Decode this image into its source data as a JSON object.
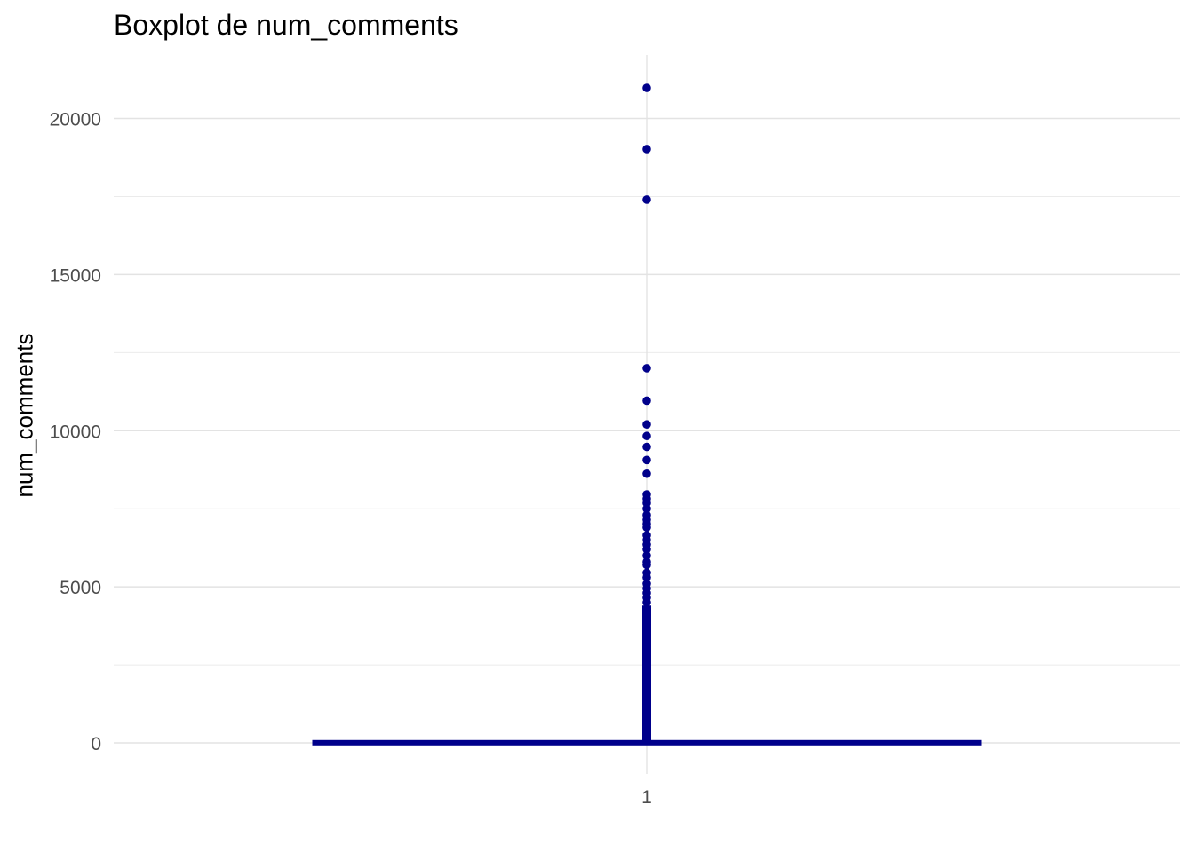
{
  "chart_data": {
    "type": "boxplot",
    "title": "Boxplot de num_comments",
    "xlabel": "",
    "ylabel": "num_comments",
    "categories": [
      "1"
    ],
    "y_ticks": [
      0,
      5000,
      10000,
      15000,
      20000
    ],
    "ylim": [
      -1000,
      22000
    ],
    "grid": true,
    "color": "#00008B",
    "box": {
      "q1": 0,
      "median": 0,
      "q3": 20,
      "whisker_low": 0,
      "whisker_high": 50
    },
    "outliers": [
      20980,
      19020,
      17400,
      12000,
      10960,
      10200,
      9830,
      9480,
      9060,
      8620,
      7960,
      7820,
      7680,
      7500,
      7300,
      7150,
      7020,
      6900,
      6650,
      6500,
      6350,
      6200,
      6000,
      5800,
      5700,
      5450,
      5300,
      5100,
      4950,
      4800,
      4650,
      4500,
      4300,
      4100,
      3900,
      3700,
      3500,
      3300,
      3100,
      2900,
      2700,
      2500,
      2300,
      2100,
      1900,
      1700,
      1500,
      1300,
      1100,
      900,
      700,
      500,
      300,
      100
    ]
  }
}
